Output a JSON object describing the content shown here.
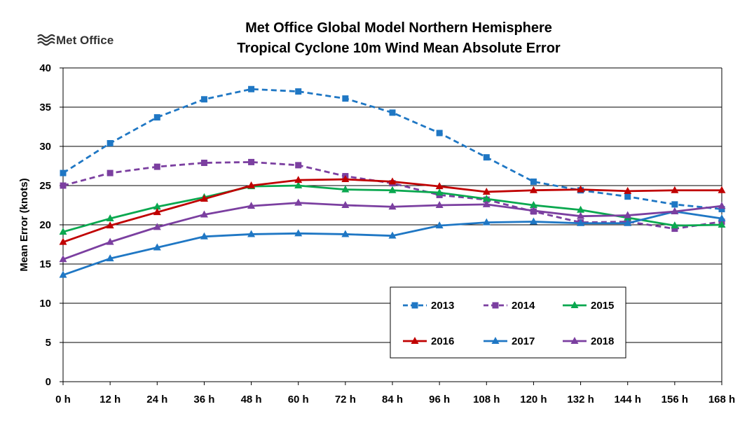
{
  "logo": {
    "text": "Met Office"
  },
  "chart_data": {
    "type": "line",
    "title": "Met Office Global Model Northern Hemisphere",
    "subtitle": "Tropical Cyclone 10m Wind Mean Absolute Error",
    "xlabel": "",
    "ylabel": "Mean Error (knots)",
    "ylim": [
      0,
      40
    ],
    "yticks": [
      0,
      5,
      10,
      15,
      20,
      25,
      30,
      35,
      40
    ],
    "grid": true,
    "legend_position": "bottom-right",
    "categories": [
      "0 h",
      "12 h",
      "24 h",
      "36 h",
      "48 h",
      "60 h",
      "72 h",
      "84 h",
      "96 h",
      "108 h",
      "120 h",
      "132 h",
      "144 h",
      "156 h",
      "168 h"
    ],
    "series": [
      {
        "name": "2013",
        "color": "#1F77C4",
        "dash": true,
        "marker": "square",
        "values": [
          26.6,
          30.4,
          33.7,
          36.0,
          37.3,
          37.0,
          36.1,
          34.3,
          31.7,
          28.6,
          25.5,
          24.4,
          23.6,
          22.6,
          22.0
        ]
      },
      {
        "name": "2014",
        "color": "#7B3FA0",
        "dash": true,
        "marker": "square",
        "values": [
          25.0,
          26.6,
          27.4,
          27.9,
          28.0,
          27.6,
          26.2,
          25.3,
          23.8,
          23.2,
          21.7,
          20.3,
          20.4,
          19.5,
          20.4
        ]
      },
      {
        "name": "2015",
        "color": "#0AA84F",
        "dash": false,
        "marker": "triangle",
        "values": [
          19.1,
          20.8,
          22.3,
          23.5,
          24.9,
          25.0,
          24.5,
          24.4,
          24.1,
          23.3,
          22.5,
          21.9,
          20.9,
          19.9,
          20.0
        ]
      },
      {
        "name": "2016",
        "color": "#C00000",
        "dash": false,
        "marker": "triangle",
        "values": [
          17.8,
          19.9,
          21.6,
          23.3,
          25.0,
          25.7,
          25.8,
          25.5,
          24.9,
          24.2,
          24.4,
          24.5,
          24.3,
          24.4,
          24.4
        ]
      },
      {
        "name": "2017",
        "color": "#1F77C4",
        "dash": false,
        "marker": "triangle",
        "values": [
          13.6,
          15.7,
          17.1,
          18.5,
          18.8,
          18.9,
          18.8,
          18.6,
          19.9,
          20.3,
          20.4,
          20.2,
          20.2,
          21.7,
          20.8
        ]
      },
      {
        "name": "2018",
        "color": "#7B3FA0",
        "dash": false,
        "marker": "triangle",
        "values": [
          15.6,
          17.8,
          19.7,
          21.3,
          22.4,
          22.8,
          22.5,
          22.3,
          22.5,
          22.6,
          21.8,
          21.1,
          21.2,
          21.7,
          22.4
        ]
      }
    ]
  }
}
